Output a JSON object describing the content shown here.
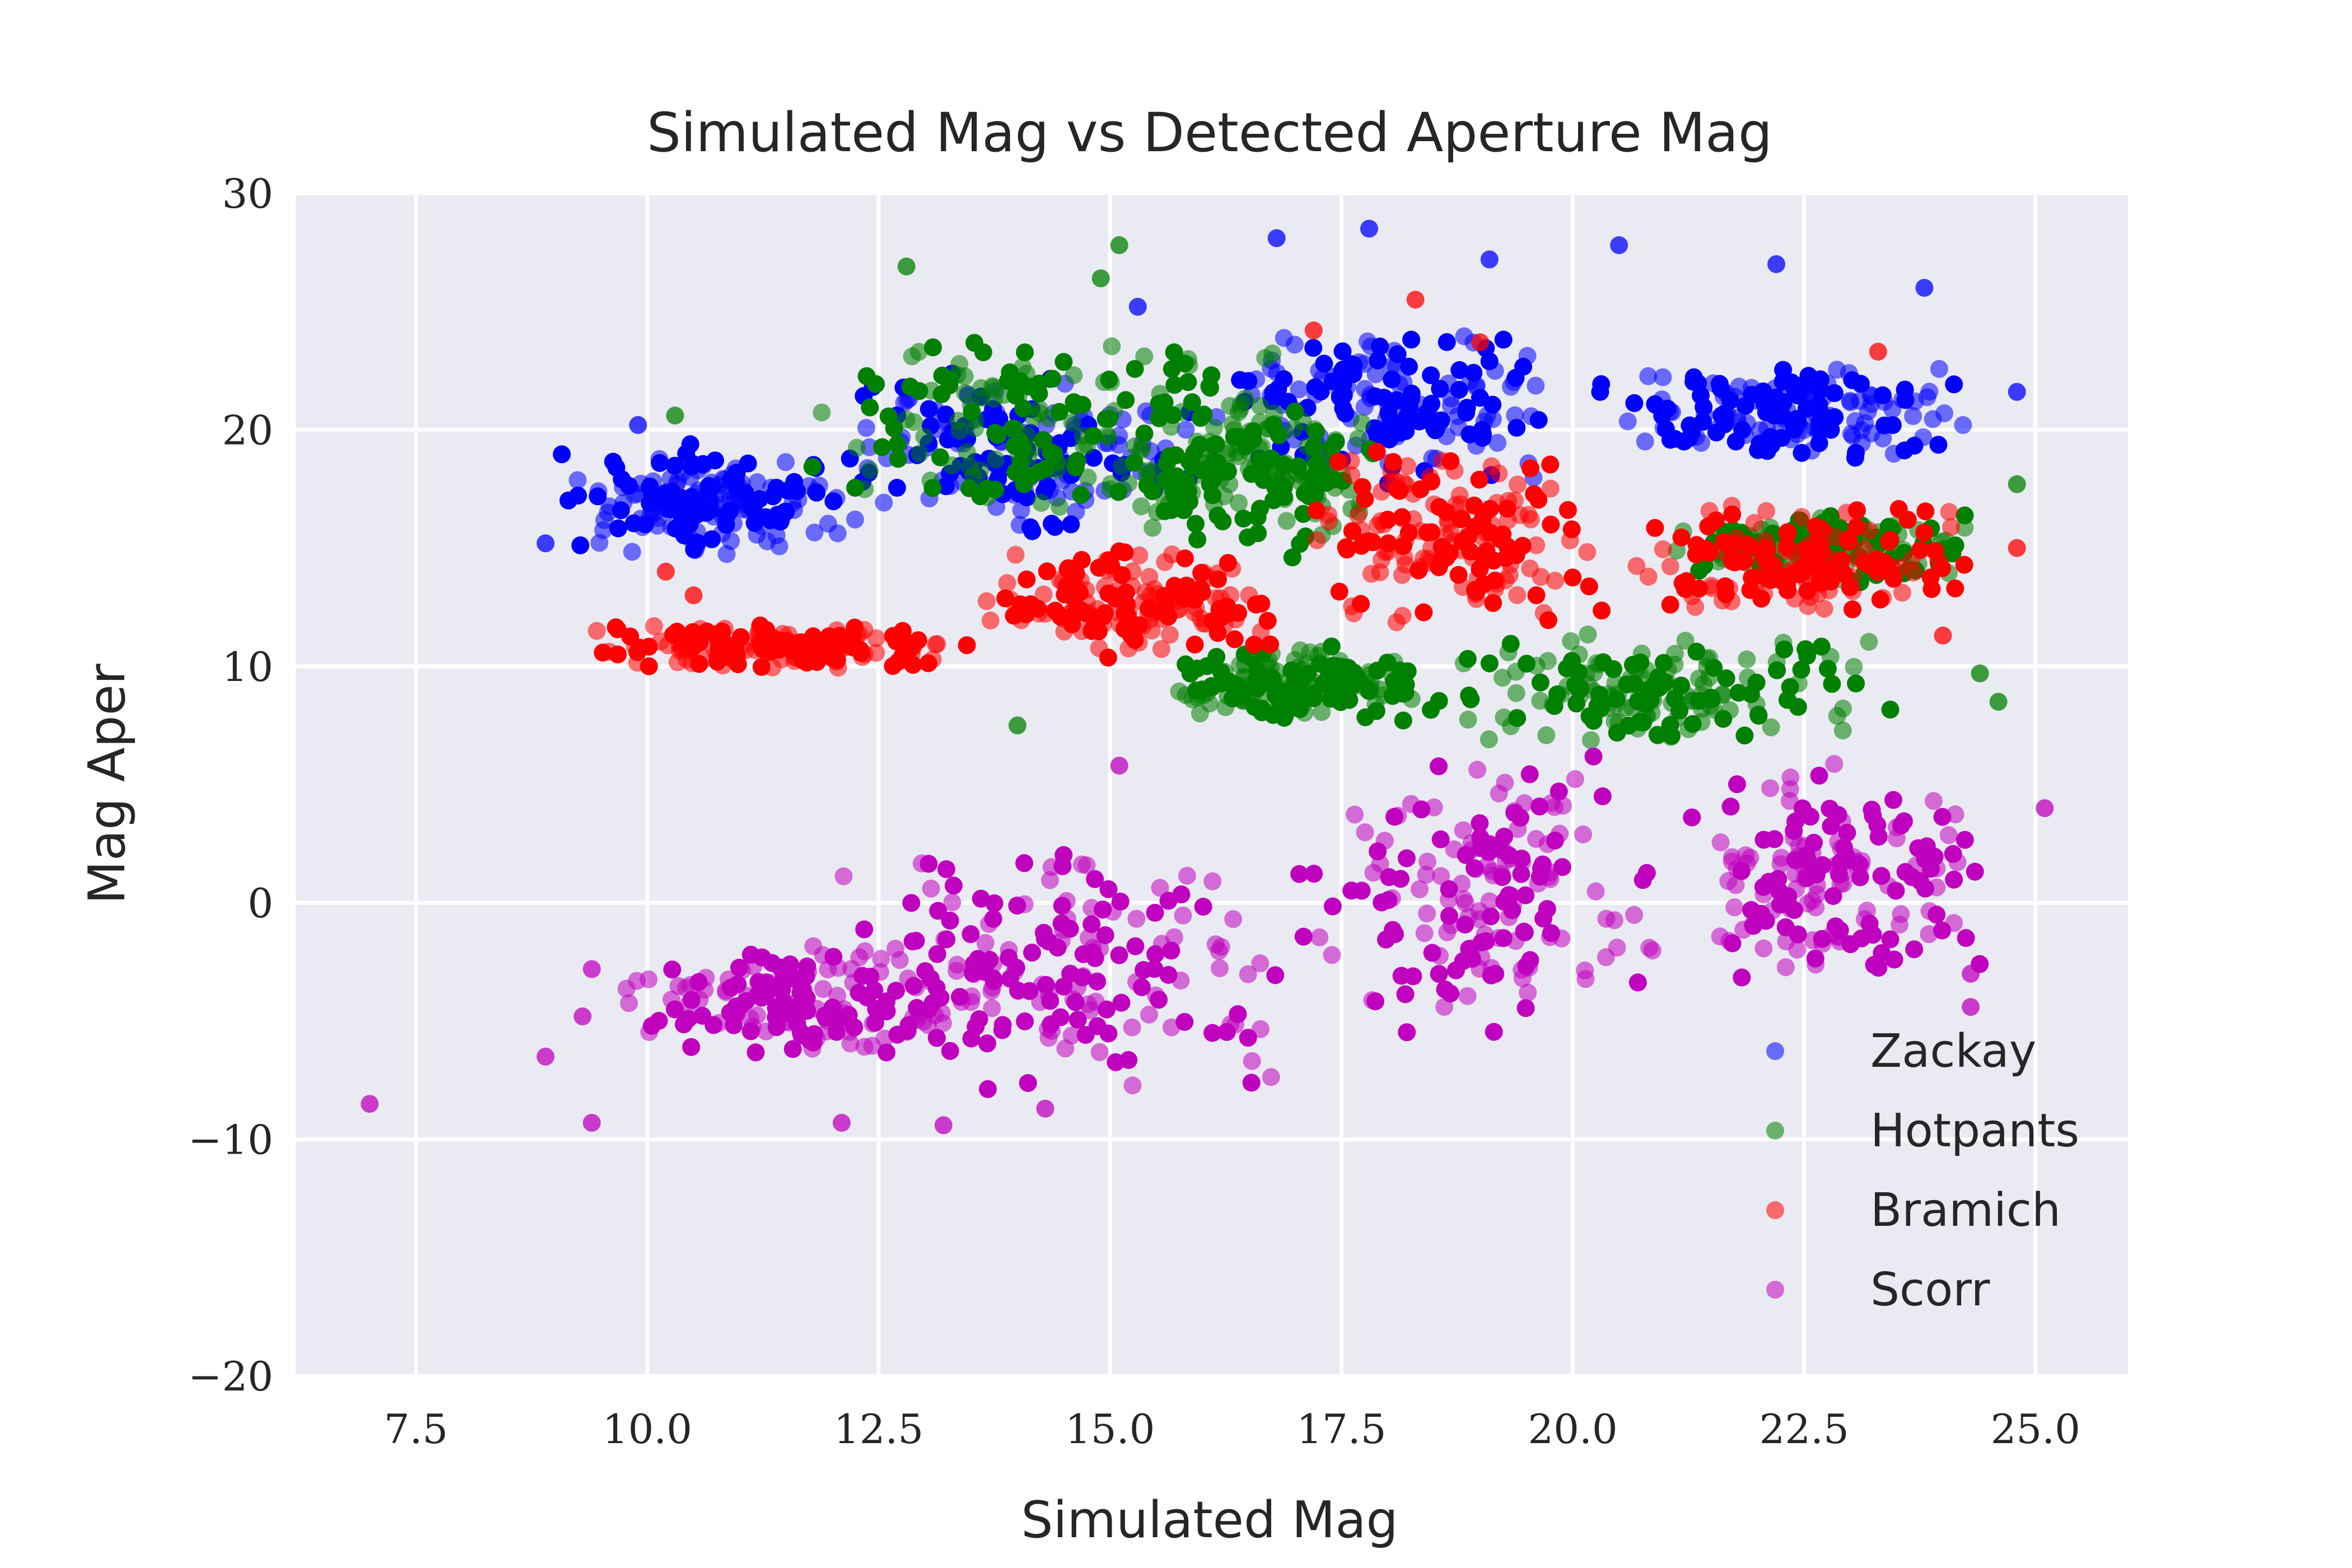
{
  "chart_data": {
    "type": "scatter",
    "title": "Simulated Mag vs Detected Aperture Mag",
    "xlabel": "Simulated Mag",
    "ylabel": "Mag Aper",
    "xlim": [
      6.2,
      26.0
    ],
    "ylim": [
      -20,
      30
    ],
    "x_ticks": [
      7.5,
      10.0,
      12.5,
      15.0,
      17.5,
      20.0,
      22.5,
      25.0
    ],
    "x_tick_labels": [
      "7.5",
      "10.0",
      "12.5",
      "15.0",
      "17.5",
      "20.0",
      "22.5",
      "25.0"
    ],
    "y_ticks": [
      -20,
      -10,
      0,
      10,
      20,
      30
    ],
    "y_tick_labels": [
      "−20",
      "−10",
      "0",
      "10",
      "20",
      "30"
    ],
    "grid": true,
    "legend_position": "lower-right",
    "background": "#eaeaf2",
    "series": [
      {
        "name": "Zackay",
        "color": "#0000ff",
        "bands": [
          {
            "x": [
              8.9,
              12.2
            ],
            "y": [
              14.5,
              19.5
            ]
          },
          {
            "x": [
              12.0,
              16.0
            ],
            "y": [
              15.5,
              22.5
            ]
          },
          {
            "x": [
              16.0,
              20.0
            ],
            "y": [
              17.5,
              24.5
            ]
          },
          {
            "x": [
              20.0,
              24.5
            ],
            "y": [
              18.5,
              23.0
            ]
          }
        ],
        "outliers": [
          [
            17.8,
            28.5
          ],
          [
            20.5,
            27.8
          ],
          [
            19.1,
            27.2
          ],
          [
            23.8,
            26.0
          ],
          [
            16.8,
            28.1
          ],
          [
            22.2,
            27.0
          ],
          [
            15.3,
            25.2
          ],
          [
            9.9,
            20.2
          ],
          [
            24.8,
            21.6
          ],
          [
            8.9,
            15.2
          ]
        ]
      },
      {
        "name": "Hotpants",
        "color": "#008000",
        "bands": [
          {
            "x": [
              11.5,
              17.0
            ],
            "y": [
              16.5,
              24.0
            ]
          },
          {
            "x": [
              15.0,
              18.0
            ],
            "y": [
              14.5,
              22.5
            ]
          },
          {
            "x": [
              15.5,
              18.5
            ],
            "y": [
              7.5,
              11.0
            ]
          },
          {
            "x": [
              18.5,
              23.5
            ],
            "y": [
              6.5,
              11.5
            ]
          },
          {
            "x": [
              21.0,
              24.5
            ],
            "y": [
              13.5,
              16.5
            ]
          }
        ],
        "outliers": [
          [
            15.1,
            27.8
          ],
          [
            12.8,
            26.9
          ],
          [
            14.9,
            26.4
          ],
          [
            14.0,
            7.5
          ],
          [
            24.8,
            17.7
          ],
          [
            24.4,
            9.7
          ],
          [
            24.6,
            8.5
          ],
          [
            10.3,
            20.6
          ]
        ]
      },
      {
        "name": "Bramich",
        "color": "#ff0000",
        "bands": [
          {
            "x": [
              9.3,
              13.5
            ],
            "y": [
              9.8,
              11.8
            ]
          },
          {
            "x": [
              13.5,
              17.0
            ],
            "y": [
              10.3,
              15.0
            ]
          },
          {
            "x": [
              17.0,
              20.5
            ],
            "y": [
              11.5,
              19.5
            ]
          },
          {
            "x": [
              20.5,
              24.4
            ],
            "y": [
              11.8,
              17.0
            ]
          }
        ],
        "outliers": [
          [
            18.3,
            25.5
          ],
          [
            23.3,
            23.3
          ],
          [
            10.2,
            14.0
          ],
          [
            10.5,
            13.0
          ],
          [
            24.8,
            15.0
          ],
          [
            24.0,
            11.3
          ],
          [
            19.0,
            23.7
          ],
          [
            17.2,
            24.2
          ]
        ]
      },
      {
        "name": "Scorr",
        "color": "#bf00bf",
        "bands": [
          {
            "x": [
              9.5,
              14.0
            ],
            "y": [
              -6.5,
              -1.5
            ]
          },
          {
            "x": [
              12.0,
              17.0
            ],
            "y": [
              -8.0,
              3.0
            ]
          },
          {
            "x": [
              17.0,
              21.0
            ],
            "y": [
              -6.0,
              6.5
            ]
          },
          {
            "x": [
              21.0,
              24.5
            ],
            "y": [
              -3.5,
              6.5
            ]
          }
        ],
        "outliers": [
          [
            7.0,
            -8.5
          ],
          [
            9.4,
            -9.3
          ],
          [
            12.1,
            -9.3
          ],
          [
            13.2,
            -9.4
          ],
          [
            14.3,
            -8.7
          ],
          [
            25.1,
            4.0
          ],
          [
            24.3,
            -4.4
          ],
          [
            24.3,
            -3.0
          ],
          [
            8.9,
            -6.5
          ],
          [
            9.4,
            -2.8
          ],
          [
            15.1,
            5.8
          ],
          [
            9.3,
            -4.8
          ]
        ]
      }
    ]
  }
}
